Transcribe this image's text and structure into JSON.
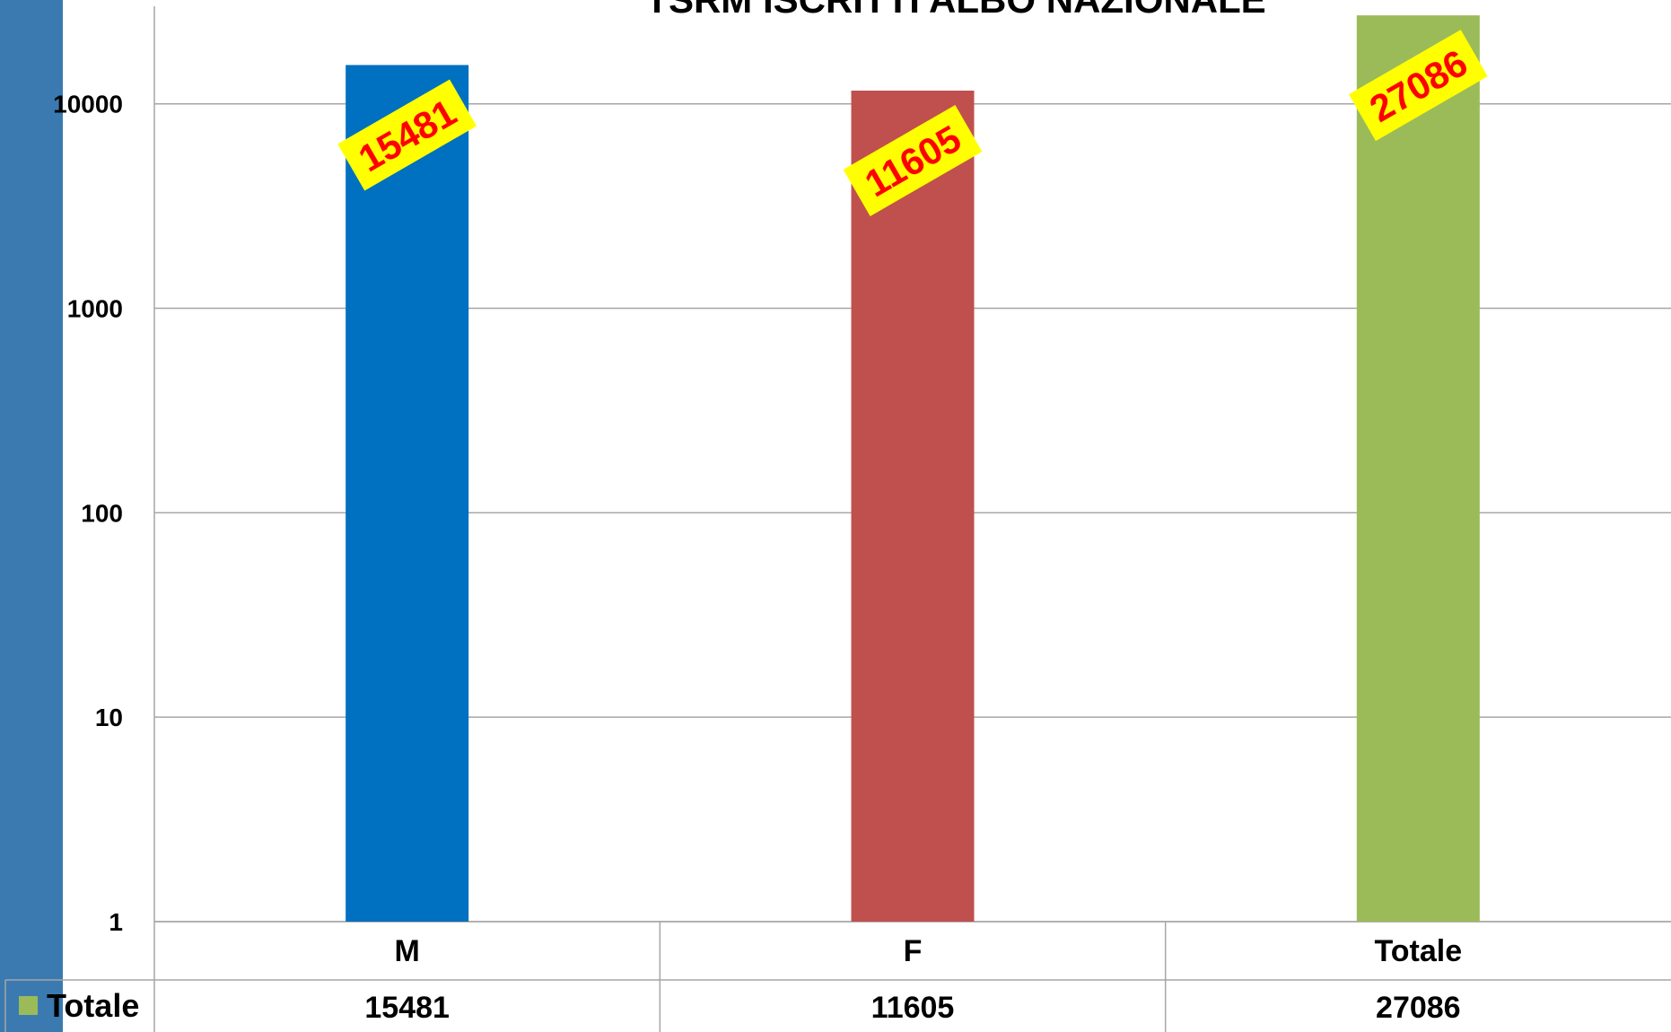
{
  "chart_data": {
    "type": "bar",
    "title": "TSRM ISCRITTI ALBO NAZIONALE",
    "categories": [
      "M",
      "F",
      "Totale"
    ],
    "series": [
      {
        "name": "Totale",
        "color": "#9bbb59",
        "bar_colors": [
          "#0070c0",
          "#c0504d",
          "#9bbb59"
        ],
        "values": [
          15481,
          11605,
          27086
        ]
      }
    ],
    "ylim": [
      1,
      30000
    ],
    "yticks": [
      1,
      10,
      100,
      1000,
      10000
    ],
    "log_scale": true,
    "grid": true,
    "data_table": true,
    "label_color": "#ff0000",
    "label_background": "#ffff00"
  }
}
